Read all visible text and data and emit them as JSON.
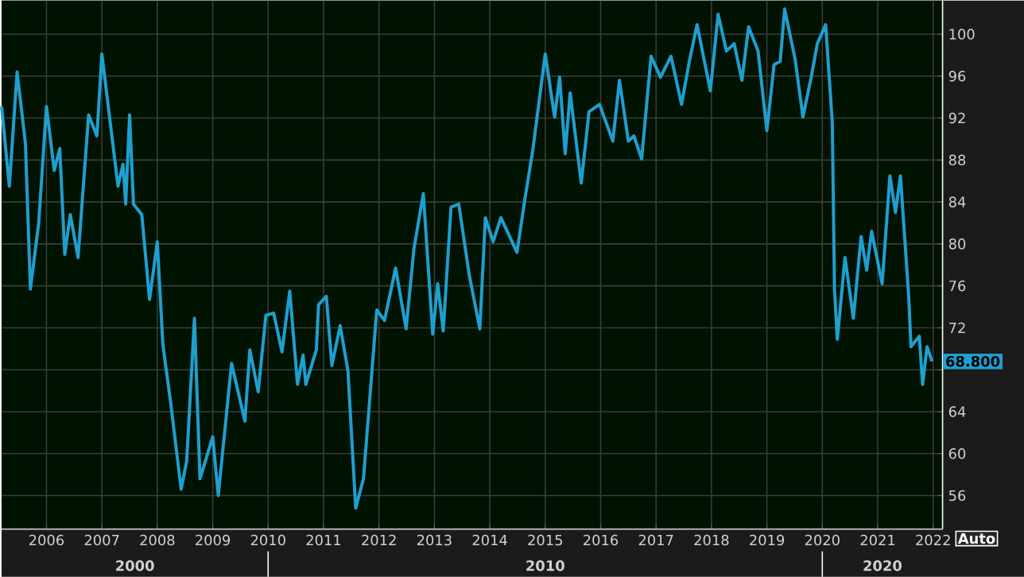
{
  "chart_data": {
    "type": "line",
    "color": "#1e9fd0",
    "grid": true,
    "marker": "none",
    "line_style": "solid",
    "xlim": [
      2005.19,
      2022.17
    ],
    "ylim": [
      52.8,
      103.2
    ],
    "xticks": [
      2006,
      2007,
      2008,
      2009,
      2010,
      2011,
      2012,
      2013,
      2014,
      2015,
      2016,
      2017,
      2018,
      2019,
      2020,
      2021,
      2022
    ],
    "yticks": [
      56,
      60,
      64,
      {
        "value": 68,
        "label": null
      },
      72,
      76,
      80,
      84,
      88,
      92,
      96,
      100
    ],
    "annotations": [
      "68.800",
      "2000",
      "2010",
      "2020",
      "Auto"
    ],
    "x": [
      2005.19,
      2005.33,
      2005.47,
      2005.62,
      2005.71,
      2005.86,
      2006.0,
      2006.14,
      2006.24,
      2006.33,
      2006.43,
      2006.57,
      2006.76,
      2006.91,
      2007.0,
      2007.15,
      2007.29,
      2007.38,
      2007.43,
      2007.5,
      2007.57,
      2007.72,
      2007.86,
      2008.0,
      2008.1,
      2008.24,
      2008.43,
      2008.53,
      2008.67,
      2008.77,
      2009.0,
      2009.1,
      2009.34,
      2009.58,
      2009.67,
      2009.82,
      2009.96,
      2010.1,
      2010.25,
      2010.39,
      2010.53,
      2010.63,
      2010.68,
      2010.87,
      2010.91,
      2011.05,
      2011.15,
      2011.3,
      2011.44,
      2011.58,
      2011.72,
      2011.96,
      2012.1,
      2012.3,
      2012.49,
      2012.63,
      2012.8,
      2012.97,
      2013.06,
      2013.16,
      2013.3,
      2013.44,
      2013.63,
      2013.82,
      2013.92,
      2014.06,
      2014.2,
      2014.49,
      2014.64,
      2014.78,
      2015.0,
      2015.17,
      2015.26,
      2015.36,
      2015.45,
      2015.65,
      2015.79,
      2015.98,
      2016.22,
      2016.34,
      2016.5,
      2016.6,
      2016.74,
      2016.91,
      2017.08,
      2017.27,
      2017.46,
      2017.6,
      2017.74,
      2017.98,
      2018.12,
      2018.27,
      2018.41,
      2018.55,
      2018.67,
      2018.84,
      2019.0,
      2019.13,
      2019.24,
      2019.32,
      2019.51,
      2019.65,
      2019.8,
      2019.91,
      2020.06,
      2020.18,
      2020.22,
      2020.27,
      2020.41,
      2020.56,
      2020.7,
      2020.8,
      2020.89,
      2021.08,
      2021.22,
      2021.32,
      2021.41,
      2021.56,
      2021.6,
      2021.75,
      2021.81,
      2021.89,
      2021.98
    ],
    "values": [
      93.1,
      85.5,
      96.4,
      89.6,
      75.7,
      82.0,
      93.1,
      87.0,
      89.1,
      79.0,
      82.8,
      78.7,
      92.3,
      90.3,
      98.1,
      91.6,
      85.5,
      87.6,
      83.8,
      92.3,
      83.8,
      82.8,
      74.7,
      80.2,
      70.4,
      64.9,
      56.6,
      59.3,
      72.9,
      57.6,
      61.6,
      56.0,
      68.6,
      63.1,
      69.9,
      65.9,
      73.2,
      73.4,
      69.7,
      75.5,
      66.6,
      69.4,
      66.6,
      69.9,
      74.2,
      75.0,
      68.4,
      72.2,
      67.9,
      54.8,
      57.6,
      73.7,
      72.7,
      77.7,
      71.9,
      79.5,
      84.8,
      71.4,
      76.2,
      71.7,
      83.5,
      83.8,
      77.0,
      71.9,
      82.5,
      80.2,
      82.5,
      79.2,
      84.5,
      89.1,
      98.1,
      92.1,
      95.9,
      88.6,
      94.4,
      85.8,
      92.6,
      93.3,
      89.8,
      95.6,
      89.8,
      90.3,
      88.1,
      97.9,
      95.9,
      97.9,
      93.3,
      97.4,
      100.9,
      94.6,
      101.9,
      98.4,
      99.1,
      95.6,
      100.7,
      98.4,
      90.8,
      97.1,
      97.4,
      102.4,
      97.6,
      92.1,
      95.9,
      99.1,
      100.9,
      91.6,
      75.7,
      70.9,
      78.7,
      72.9,
      80.7,
      77.5,
      81.2,
      76.2,
      86.5,
      83.0,
      86.5,
      74.9,
      70.2,
      71.2,
      66.6,
      70.2,
      68.8
    ]
  }
}
